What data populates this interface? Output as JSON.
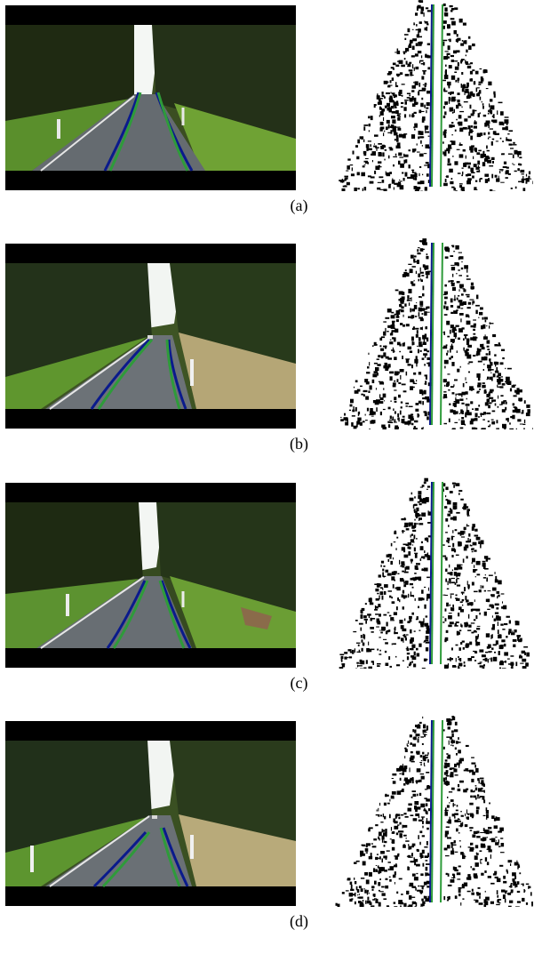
{
  "captions": [
    "(a)",
    "(b)",
    "(c)",
    "(d)"
  ],
  "colors": {
    "ground_truth": "#0a1a8c",
    "estimate": "#2e9b3a"
  }
}
